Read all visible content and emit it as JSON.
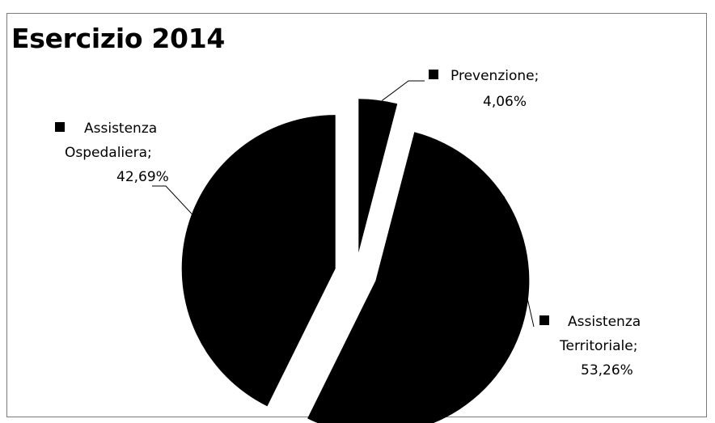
{
  "chart_data": {
    "type": "pie",
    "title": "Esercizio 2014",
    "slices": [
      {
        "name": "Prevenzione",
        "value": 4.06,
        "label_line1": "Prevenzione;",
        "label_line2": "4,06%"
      },
      {
        "name": "Assistenza Territoriale",
        "value": 53.26,
        "label_line1": "Assistenza",
        "label_line2": "Territoriale;",
        "label_line3": "53,26%"
      },
      {
        "name": "Assistenza Ospedaliera",
        "value": 42.69,
        "label_line1": "Assistenza",
        "label_line2": "Ospedaliera;",
        "label_line3": "42,69%"
      }
    ],
    "exploded": true,
    "slice_color": "#000000",
    "background_color": "#ffffff"
  }
}
